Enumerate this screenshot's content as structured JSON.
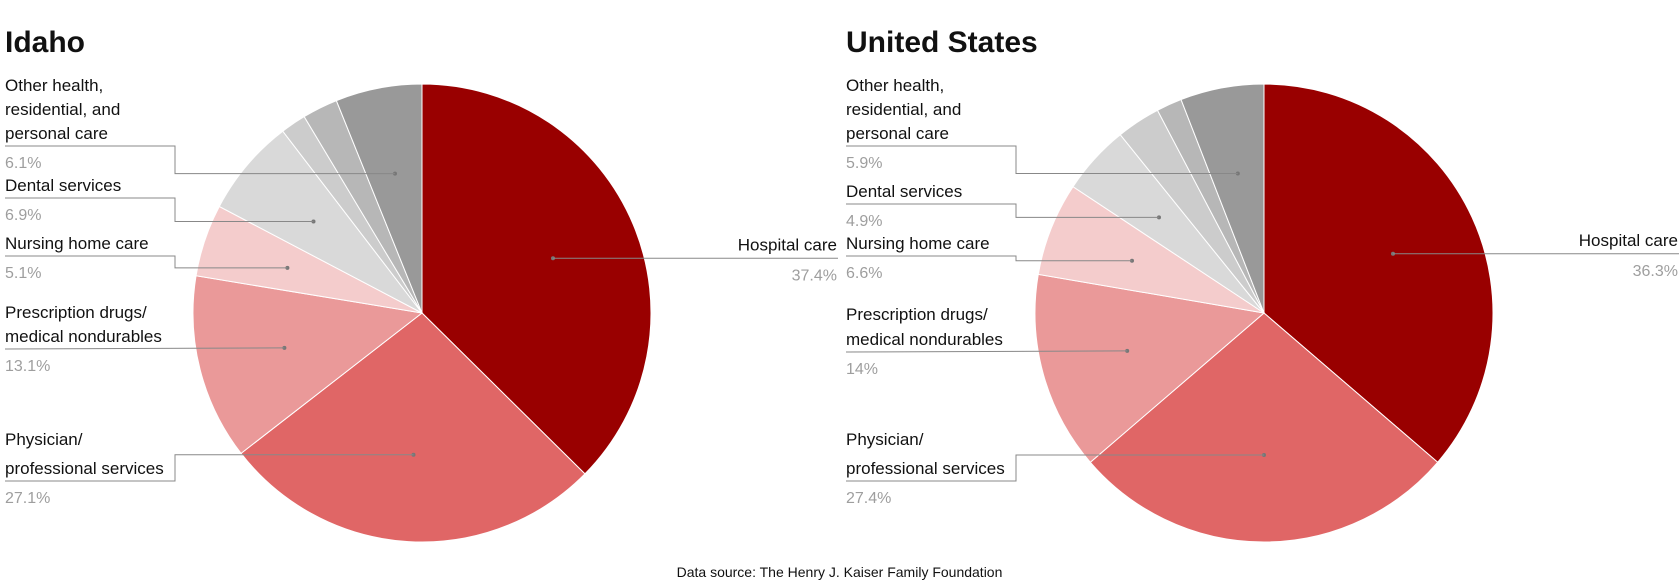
{
  "colors": {
    "Hospital care": "#990000",
    "Physician/ professional services": "#e06666",
    "Prescription drugs/ medical nondurables": "#ea9999",
    "Nursing home care": "#f4cccc",
    "Dental services": "#d9d9d9",
    "Other small 1": "#cccccc",
    "Other small 2": "#b7b7b7",
    "Other health, residential, and personal care": "#999999"
  },
  "chart_data": [
    {
      "type": "pie",
      "title": "Idaho",
      "slices": [
        {
          "label": "Hospital care",
          "value": 37.4,
          "value_label": "37.4%",
          "label_lines": [
            "Hospital care"
          ],
          "labeled": true
        },
        {
          "label": "Physician/ professional services",
          "value": 27.1,
          "value_label": "27.1%",
          "label_lines": [
            "Physician/",
            "professional services"
          ],
          "labeled": true
        },
        {
          "label": "Prescription drugs/ medical nondurables",
          "value": 13.1,
          "value_label": "13.1%",
          "label_lines": [
            "Prescription drugs/",
            "medical nondurables"
          ],
          "labeled": true
        },
        {
          "label": "Nursing home care",
          "value": 5.1,
          "value_label": "5.1%",
          "label_lines": [
            "Nursing home care"
          ],
          "labeled": true
        },
        {
          "label": "Dental services",
          "value": 6.9,
          "value_label": "6.9%",
          "label_lines": [
            "Dental services"
          ],
          "labeled": true
        },
        {
          "label": "",
          "value": 1.8,
          "labeled": false
        },
        {
          "label": "",
          "value": 2.5,
          "labeled": false
        },
        {
          "label": "Other health, residential, and personal care",
          "value": 6.1,
          "value_label": "6.1%",
          "label_lines": [
            "Other health,",
            "residential, and",
            "personal care"
          ],
          "labeled": true
        }
      ]
    },
    {
      "type": "pie",
      "title": "United States",
      "slices": [
        {
          "label": "Hospital care",
          "value": 36.3,
          "value_label": "36.3%",
          "label_lines": [
            "Hospital care"
          ],
          "labeled": true
        },
        {
          "label": "Physician/ professional services",
          "value": 27.4,
          "value_label": "27.4%",
          "label_lines": [
            "Physician/",
            "professional services"
          ],
          "labeled": true
        },
        {
          "label": "Prescription drugs/ medical nondurables",
          "value": 14,
          "value_label": "14%",
          "label_lines": [
            "Prescription drugs/",
            "medical nondurables"
          ],
          "labeled": true
        },
        {
          "label": "Nursing home care",
          "value": 6.6,
          "value_label": "6.6%",
          "label_lines": [
            "Nursing home care"
          ],
          "labeled": true
        },
        {
          "label": "Dental services",
          "value": 4.9,
          "value_label": "4.9%",
          "label_lines": [
            "Dental services"
          ],
          "labeled": true
        },
        {
          "label": "",
          "value": 3.1,
          "labeled": false
        },
        {
          "label": "",
          "value": 1.8,
          "labeled": false
        },
        {
          "label": "Other health, residential, and personal care",
          "value": 5.9,
          "value_label": "5.9%",
          "label_lines": [
            "Other health,",
            "residential, and",
            "personal care"
          ],
          "labeled": true
        }
      ]
    }
  ],
  "footer": {
    "source": "Data source: The Henry J. Kaiser Family Foundation"
  }
}
